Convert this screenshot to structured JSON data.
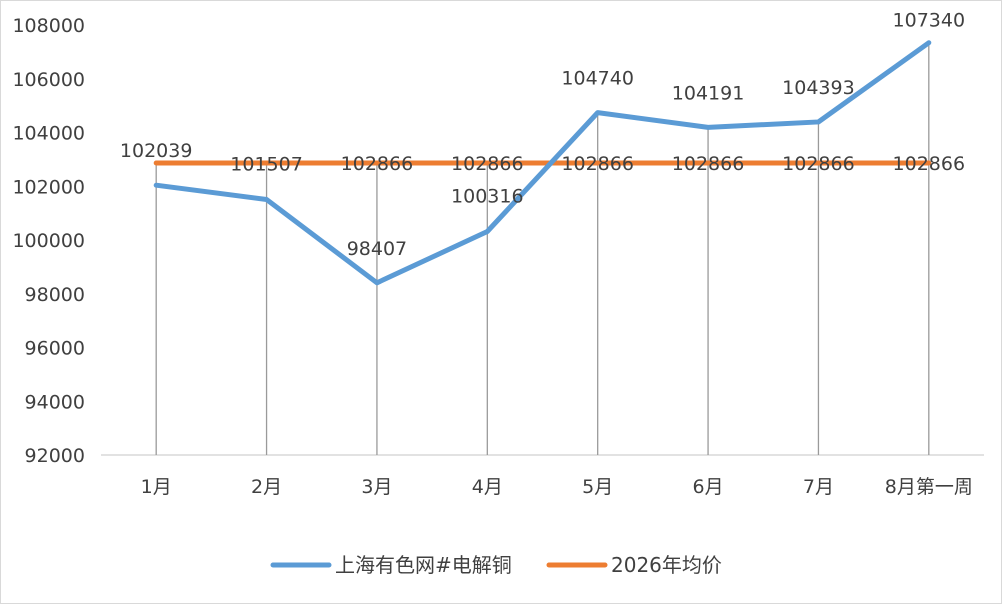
{
  "chart_data": {
    "type": "line",
    "title": "",
    "xlabel": "",
    "ylabel": "",
    "categories": [
      "1月",
      "2月",
      "3月",
      "4月",
      "5月",
      "6月",
      "7月",
      "8月第一周"
    ],
    "ylim": [
      92000,
      108000
    ],
    "yticks": [
      92000,
      94000,
      96000,
      98000,
      100000,
      102000,
      104000,
      106000,
      108000
    ],
    "grid": false,
    "drop_lines": true,
    "legend_position": "bottom",
    "series": [
      {
        "name": "上海有色网#电解铜",
        "color": "#5b9bd5",
        "values": [
          102039,
          101507,
          98407,
          100316,
          104740,
          104191,
          104393,
          107340
        ],
        "labels": [
          "102039",
          "101507",
          "98407",
          "100316",
          "104740",
          "104191",
          "104393",
          "107340"
        ]
      },
      {
        "name": "2026年均价",
        "color": "#ed7d31",
        "values": [
          102866,
          102866,
          102866,
          102866,
          102866,
          102866,
          102866,
          102866
        ],
        "labels": [
          "",
          "",
          "102866",
          "102866",
          "102866",
          "102866",
          "102866",
          "102866"
        ]
      }
    ]
  }
}
